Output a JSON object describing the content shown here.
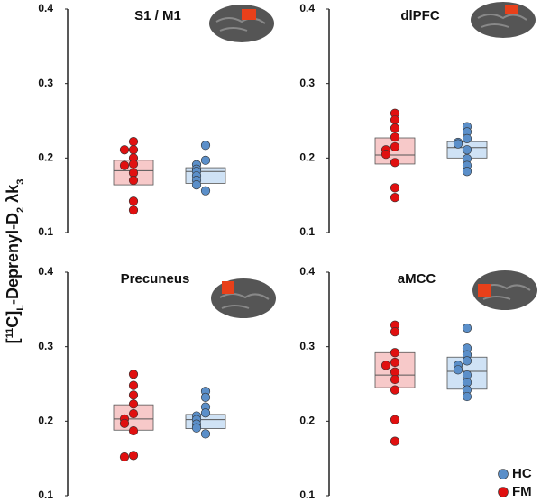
{
  "y_label": [
    {
      "text": "[",
      "shift": "none"
    },
    {
      "text": "11",
      "shift": "super"
    },
    {
      "text": "C]",
      "shift": "none"
    },
    {
      "text": "L",
      "shift": "sub"
    },
    {
      "text": "-Deprenyl-D",
      "shift": "none"
    },
    {
      "text": "2",
      "shift": "sub"
    },
    {
      "text": " λk",
      "shift": "none"
    },
    {
      "text": "3",
      "shift": "sub"
    }
  ],
  "chart_data": [
    {
      "type": "strip",
      "title": "S1 / M1",
      "ylim": [
        0.1,
        0.4
      ],
      "yticks": [
        0.1,
        0.2,
        0.3,
        0.4
      ],
      "series": [
        {
          "name": "FM",
          "color": "#e01010",
          "box_color": "#f7c9c9",
          "values": [
            0.222,
            0.211,
            0.211,
            0.2,
            0.192,
            0.19,
            0.18,
            0.17,
            0.142,
            0.13
          ],
          "q1": 0.164,
          "median": 0.183,
          "q3": 0.197
        },
        {
          "name": "HC",
          "color": "#5b8fc9",
          "box_color": "#cfe2f5",
          "values": [
            0.217,
            0.197,
            0.191,
            0.185,
            0.182,
            0.176,
            0.17,
            0.164,
            0.156
          ],
          "q1": 0.166,
          "median": 0.182,
          "q3": 0.187
        }
      ]
    },
    {
      "type": "strip",
      "title": "dlPFC",
      "ylim": [
        0.1,
        0.4
      ],
      "yticks": [
        0.1,
        0.2,
        0.3,
        0.4
      ],
      "series": [
        {
          "name": "FM",
          "color": "#e01010",
          "box_color": "#f7c9c9",
          "values": [
            0.26,
            0.251,
            0.24,
            0.228,
            0.215,
            0.211,
            0.205,
            0.194,
            0.16,
            0.147
          ],
          "q1": 0.192,
          "median": 0.204,
          "q3": 0.227
        },
        {
          "name": "HC",
          "color": "#5b8fc9",
          "box_color": "#cfe2f5",
          "values": [
            0.242,
            0.235,
            0.226,
            0.221,
            0.219,
            0.211,
            0.199,
            0.19,
            0.182
          ],
          "q1": 0.2,
          "median": 0.214,
          "q3": 0.222
        }
      ]
    },
    {
      "type": "strip",
      "title": "Precuneus",
      "ylim": [
        0.1,
        0.4
      ],
      "yticks": [
        0.1,
        0.2,
        0.3,
        0.4
      ],
      "series": [
        {
          "name": "FM",
          "color": "#e01010",
          "box_color": "#f7c9c9",
          "values": [
            0.263,
            0.248,
            0.235,
            0.223,
            0.21,
            0.203,
            0.197,
            0.187,
            0.154,
            0.152
          ],
          "q1": 0.188,
          "median": 0.203,
          "q3": 0.222
        },
        {
          "name": "HC",
          "color": "#5b8fc9",
          "box_color": "#cfe2f5",
          "values": [
            0.24,
            0.232,
            0.219,
            0.211,
            0.207,
            0.202,
            0.196,
            0.191,
            0.183
          ],
          "q1": 0.19,
          "median": 0.202,
          "q3": 0.209
        }
      ]
    },
    {
      "type": "strip",
      "title": "aMCC",
      "ylim": [
        0.1,
        0.4
      ],
      "yticks": [
        0.1,
        0.2,
        0.3,
        0.4
      ],
      "series": [
        {
          "name": "FM",
          "color": "#e01010",
          "box_color": "#f7c9c9",
          "values": [
            0.329,
            0.32,
            0.292,
            0.279,
            0.275,
            0.266,
            0.256,
            0.242,
            0.202,
            0.173
          ],
          "q1": 0.245,
          "median": 0.262,
          "q3": 0.292
        },
        {
          "name": "HC",
          "color": "#5b8fc9",
          "box_color": "#cfe2f5",
          "values": [
            0.325,
            0.298,
            0.289,
            0.281,
            0.275,
            0.269,
            0.262,
            0.252,
            0.242,
            0.233
          ],
          "q1": 0.243,
          "median": 0.267,
          "q3": 0.286
        }
      ]
    }
  ]
}
